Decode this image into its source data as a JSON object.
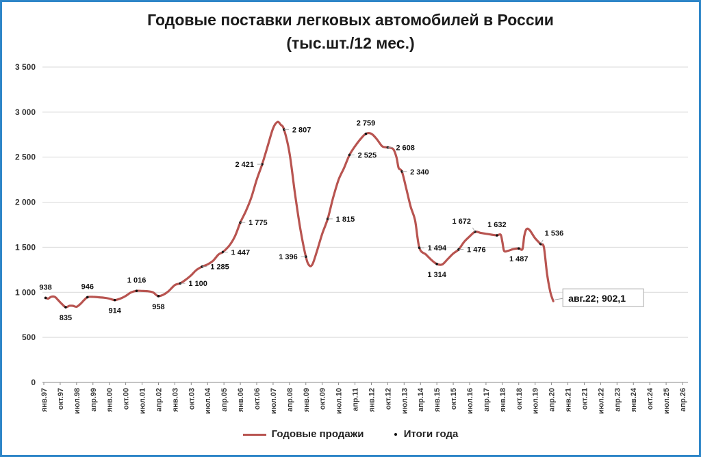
{
  "chart_data": {
    "type": "line",
    "title": "Годовые поставки легковых автомобилей в России",
    "subtitle": "(тыс.шт./12 мес.)",
    "ylim": [
      0,
      3500
    ],
    "yticks": [
      0,
      500,
      1000,
      1500,
      2000,
      2500,
      3000,
      3500
    ],
    "ytick_labels": [
      "0",
      "500",
      "1 000",
      "1 500",
      "2 000",
      "2 500",
      "3 000",
      "3 500"
    ],
    "xtick_labels": [
      "янв.97",
      "окт.97",
      "июл.98",
      "апр.99",
      "янв.00",
      "окт.00",
      "июл.01",
      "апр.02",
      "янв.03",
      "окт.03",
      "июл.04",
      "апр.05",
      "янв.06",
      "окт.06",
      "июл.07",
      "апр.08",
      "янв.09",
      "окт.09",
      "июл.10",
      "апр.11",
      "янв.12",
      "окт.12",
      "июл.13",
      "апр.14",
      "янв.15",
      "окт.15",
      "июл.16",
      "апр.17",
      "янв.18",
      "окт.18",
      "июл.19",
      "апр.20",
      "янв.21",
      "окт.21",
      "июл.22",
      "апр.23",
      "янв.24",
      "окт.24",
      "июл.25",
      "апр.26"
    ],
    "grid": true,
    "legend_position": "bottom",
    "series": [
      {
        "name": "Годовые продажи",
        "color": "#b85450",
        "points": [
          [
            1997.08,
            940
          ],
          [
            1997.2,
            930
          ],
          [
            1997.33,
            950
          ],
          [
            1997.5,
            950
          ],
          [
            1997.67,
            910
          ],
          [
            1997.83,
            870
          ],
          [
            1998.0,
            835
          ],
          [
            1998.17,
            850
          ],
          [
            1998.33,
            850
          ],
          [
            1998.5,
            840
          ],
          [
            1998.67,
            870
          ],
          [
            1998.83,
            910
          ],
          [
            1999.0,
            946
          ],
          [
            1999.25,
            950
          ],
          [
            1999.5,
            945
          ],
          [
            1999.75,
            940
          ],
          [
            2000.0,
            930
          ],
          [
            2000.25,
            914
          ],
          [
            2000.5,
            930
          ],
          [
            2000.75,
            960
          ],
          [
            2001.0,
            1000
          ],
          [
            2001.25,
            1016
          ],
          [
            2001.5,
            1015
          ],
          [
            2001.75,
            1012
          ],
          [
            2002.0,
            1000
          ],
          [
            2002.15,
            970
          ],
          [
            2002.25,
            958
          ],
          [
            2002.45,
            970
          ],
          [
            2002.7,
            1010
          ],
          [
            2003.0,
            1080
          ],
          [
            2003.25,
            1100
          ],
          [
            2003.5,
            1140
          ],
          [
            2003.75,
            1190
          ],
          [
            2004.0,
            1250
          ],
          [
            2004.25,
            1285
          ],
          [
            2004.5,
            1310
          ],
          [
            2004.75,
            1350
          ],
          [
            2005.0,
            1420
          ],
          [
            2005.2,
            1447
          ],
          [
            2005.5,
            1520
          ],
          [
            2005.75,
            1620
          ],
          [
            2006.0,
            1775
          ],
          [
            2006.25,
            1900
          ],
          [
            2006.5,
            2050
          ],
          [
            2006.75,
            2250
          ],
          [
            2007.0,
            2421
          ],
          [
            2007.25,
            2620
          ],
          [
            2007.5,
            2820
          ],
          [
            2007.7,
            2890
          ],
          [
            2007.85,
            2860
          ],
          [
            2008.0,
            2807
          ],
          [
            2008.25,
            2550
          ],
          [
            2008.5,
            2100
          ],
          [
            2008.75,
            1700
          ],
          [
            2009.0,
            1396
          ],
          [
            2009.15,
            1300
          ],
          [
            2009.3,
            1310
          ],
          [
            2009.5,
            1450
          ],
          [
            2009.75,
            1650
          ],
          [
            2010.0,
            1815
          ],
          [
            2010.25,
            2050
          ],
          [
            2010.5,
            2250
          ],
          [
            2010.75,
            2380
          ],
          [
            2011.0,
            2525
          ],
          [
            2011.25,
            2620
          ],
          [
            2011.5,
            2700
          ],
          [
            2011.75,
            2759
          ],
          [
            2012.0,
            2760
          ],
          [
            2012.25,
            2700
          ],
          [
            2012.5,
            2620
          ],
          [
            2012.75,
            2608
          ],
          [
            2013.0,
            2590
          ],
          [
            2013.15,
            2500
          ],
          [
            2013.25,
            2380
          ],
          [
            2013.4,
            2340
          ],
          [
            2013.6,
            2150
          ],
          [
            2013.8,
            1950
          ],
          [
            2014.0,
            1800
          ],
          [
            2014.2,
            1494
          ],
          [
            2014.5,
            1420
          ],
          [
            2014.75,
            1360
          ],
          [
            2015.0,
            1314
          ],
          [
            2015.25,
            1310
          ],
          [
            2015.5,
            1370
          ],
          [
            2015.75,
            1430
          ],
          [
            2016.0,
            1476
          ],
          [
            2016.25,
            1560
          ],
          [
            2016.5,
            1620
          ],
          [
            2016.75,
            1672
          ],
          [
            2017.0,
            1660
          ],
          [
            2017.25,
            1650
          ],
          [
            2017.5,
            1640
          ],
          [
            2017.75,
            1632
          ],
          [
            2017.92,
            1640
          ],
          [
            2018.0,
            1560
          ],
          [
            2018.08,
            1460
          ],
          [
            2018.25,
            1460
          ],
          [
            2018.5,
            1480
          ],
          [
            2018.75,
            1487
          ],
          [
            2018.92,
            1480
          ],
          [
            2019.0,
            1620
          ],
          [
            2019.1,
            1700
          ],
          [
            2019.25,
            1690
          ],
          [
            2019.5,
            1600
          ],
          [
            2019.75,
            1536
          ],
          [
            2019.9,
            1500
          ],
          [
            2020.05,
            1200
          ],
          [
            2020.2,
            1000
          ],
          [
            2020.33,
            902
          ]
        ]
      },
      {
        "name": "Итоги года",
        "color": "#111111",
        "points": [
          [
            1997.08,
            938
          ],
          [
            1998.0,
            835
          ],
          [
            1999.0,
            946
          ],
          [
            2000.25,
            914
          ],
          [
            2001.25,
            1016
          ],
          [
            2002.25,
            958
          ],
          [
            2003.25,
            1100
          ],
          [
            2004.25,
            1285
          ],
          [
            2005.2,
            1447
          ],
          [
            2006.0,
            1775
          ],
          [
            2007.0,
            2421
          ],
          [
            2008.0,
            2807
          ],
          [
            2009.0,
            1396
          ],
          [
            2010.0,
            1815
          ],
          [
            2011.0,
            2525
          ],
          [
            2011.75,
            2759
          ],
          [
            2012.75,
            2608
          ],
          [
            2013.4,
            2340
          ],
          [
            2014.2,
            1494
          ],
          [
            2015.0,
            1314
          ],
          [
            2016.0,
            1476
          ],
          [
            2016.75,
            1672
          ],
          [
            2017.75,
            1632
          ],
          [
            2018.75,
            1487
          ],
          [
            2019.75,
            1536
          ]
        ]
      }
    ],
    "data_labels": [
      {
        "x": 1997.08,
        "y": 938,
        "text": "938",
        "pos": "above"
      },
      {
        "x": 1998.0,
        "y": 835,
        "text": "835",
        "pos": "below"
      },
      {
        "x": 1999.0,
        "y": 946,
        "text": "946",
        "pos": "above"
      },
      {
        "x": 2000.25,
        "y": 914,
        "text": "914",
        "pos": "below"
      },
      {
        "x": 2001.25,
        "y": 1016,
        "text": "1 016",
        "pos": "above"
      },
      {
        "x": 2002.25,
        "y": 958,
        "text": "958",
        "pos": "below"
      },
      {
        "x": 2003.25,
        "y": 1100,
        "text": "1 100",
        "pos": "right"
      },
      {
        "x": 2004.25,
        "y": 1285,
        "text": "1 285",
        "pos": "right"
      },
      {
        "x": 2005.2,
        "y": 1447,
        "text": "1 447",
        "pos": "right"
      },
      {
        "x": 2006.0,
        "y": 1775,
        "text": "1 775",
        "pos": "right"
      },
      {
        "x": 2007.0,
        "y": 2421,
        "text": "2 421",
        "pos": "left"
      },
      {
        "x": 2008.0,
        "y": 2807,
        "text": "2 807",
        "pos": "right"
      },
      {
        "x": 2009.0,
        "y": 1396,
        "text": "1 396",
        "pos": "left"
      },
      {
        "x": 2010.0,
        "y": 1815,
        "text": "1 815",
        "pos": "right"
      },
      {
        "x": 2011.0,
        "y": 2525,
        "text": "2 525",
        "pos": "right"
      },
      {
        "x": 2011.75,
        "y": 2759,
        "text": "2 759",
        "pos": "above"
      },
      {
        "x": 2012.75,
        "y": 2608,
        "text": "2 608",
        "pos": "right"
      },
      {
        "x": 2013.4,
        "y": 2340,
        "text": "2 340",
        "pos": "right"
      },
      {
        "x": 2014.2,
        "y": 1494,
        "text": "1 494",
        "pos": "right"
      },
      {
        "x": 2015.0,
        "y": 1314,
        "text": "1 314",
        "pos": "below"
      },
      {
        "x": 2016.0,
        "y": 1476,
        "text": "1 476",
        "pos": "right"
      },
      {
        "x": 2016.75,
        "y": 1672,
        "text": "1 672",
        "pos": "above-left"
      },
      {
        "x": 2017.75,
        "y": 1632,
        "text": "1 632",
        "pos": "above"
      },
      {
        "x": 2018.75,
        "y": 1487,
        "text": "1 487",
        "pos": "below"
      },
      {
        "x": 2019.75,
        "y": 1536,
        "text": "1 536",
        "pos": "above-right"
      }
    ],
    "annotation": {
      "x": 2020.33,
      "y": 902,
      "text": "авг.22;  902,1"
    }
  },
  "legend": {
    "sales_label": "Годовые продажи",
    "year_label": "Итоги года"
  }
}
